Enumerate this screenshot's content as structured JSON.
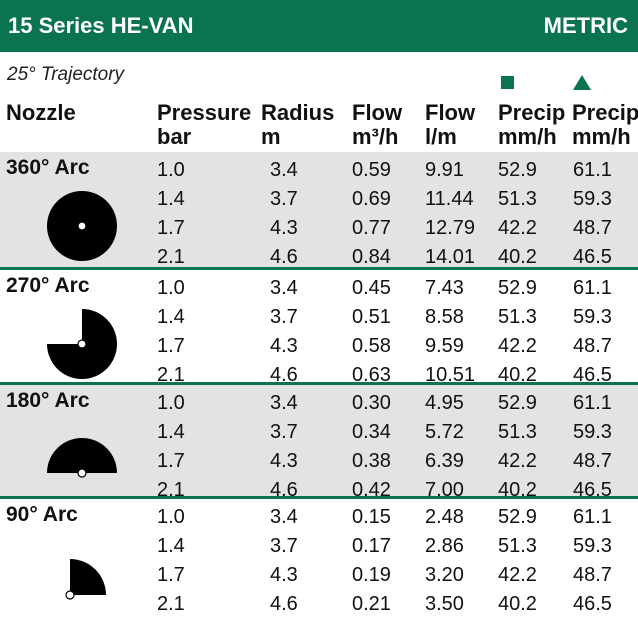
{
  "header": {
    "title": "15 Series HE-VAN",
    "system": "METRIC"
  },
  "trajectory": "25° Trajectory",
  "columns": [
    {
      "line1": "Nozzle",
      "line2": ""
    },
    {
      "line1": "Pressure",
      "line2": "bar"
    },
    {
      "line1": "Radius",
      "line2": "m"
    },
    {
      "line1": "Flow",
      "line2": "m³/h"
    },
    {
      "line1": "Flow",
      "line2": "l/m"
    },
    {
      "line1": "Precip",
      "line2": "mm/h"
    },
    {
      "line1": "Precip",
      "line2": "mm/h"
    }
  ],
  "precip_symbols": {
    "square": "square-spacing-icon",
    "triangle": "triangle-spacing-icon",
    "color": "#0a7350"
  },
  "groups": [
    {
      "arc": "360° Arc",
      "icon": "full-circle-arc-icon",
      "rows": [
        [
          "1.0",
          "3.4",
          "0.59",
          "9.91",
          "52.9",
          "61.1"
        ],
        [
          "1.4",
          "3.7",
          "0.69",
          "11.44",
          "51.3",
          "59.3"
        ],
        [
          "1.7",
          "4.3",
          "0.77",
          "12.79",
          "42.2",
          "48.7"
        ],
        [
          "2.1",
          "4.6",
          "0.84",
          "14.01",
          "40.2",
          "46.5"
        ]
      ]
    },
    {
      "arc": "270° Arc",
      "icon": "three-quarter-arc-icon",
      "rows": [
        [
          "1.0",
          "3.4",
          "0.45",
          "7.43",
          "52.9",
          "61.1"
        ],
        [
          "1.4",
          "3.7",
          "0.51",
          "8.58",
          "51.3",
          "59.3"
        ],
        [
          "1.7",
          "4.3",
          "0.58",
          "9.59",
          "42.2",
          "48.7"
        ],
        [
          "2.1",
          "4.6",
          "0.63",
          "10.51",
          "40.2",
          "46.5"
        ]
      ]
    },
    {
      "arc": "180° Arc",
      "icon": "half-circle-arc-icon",
      "rows": [
        [
          "1.0",
          "3.4",
          "0.30",
          "4.95",
          "52.9",
          "61.1"
        ],
        [
          "1.4",
          "3.7",
          "0.34",
          "5.72",
          "51.3",
          "59.3"
        ],
        [
          "1.7",
          "4.3",
          "0.38",
          "6.39",
          "42.2",
          "48.7"
        ],
        [
          "2.1",
          "4.6",
          "0.42",
          "7.00",
          "40.2",
          "46.5"
        ]
      ]
    },
    {
      "arc": "90° Arc",
      "icon": "quarter-circle-arc-icon",
      "rows": [
        [
          "1.0",
          "3.4",
          "0.15",
          "2.48",
          "52.9",
          "61.1"
        ],
        [
          "1.4",
          "3.7",
          "0.17",
          "2.86",
          "51.3",
          "59.3"
        ],
        [
          "1.7",
          "4.3",
          "0.19",
          "3.20",
          "42.2",
          "48.7"
        ],
        [
          "2.1",
          "4.6",
          "0.21",
          "3.50",
          "40.2",
          "46.5"
        ]
      ]
    }
  ]
}
